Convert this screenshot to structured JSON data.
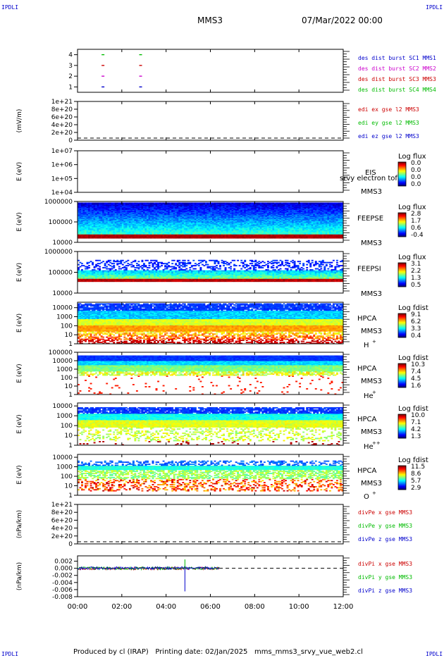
{
  "corners": {
    "tl": "IPDLI",
    "tr": "IPDLI",
    "bl": "IPDLI",
    "br": "IPDLI"
  },
  "header": {
    "spacecraft": "MMS3",
    "date": "07/Mar/2022 00:00"
  },
  "footer": {
    "produced": "Produced by cl (IRAP)",
    "printing": "Printing date: 02/Jan/2025",
    "file": "mms_mms3_srvy_vue_web2.cl"
  },
  "time_axis": {
    "ticks": [
      "00:00",
      "02:00",
      "04:00",
      "06:00",
      "08:00",
      "10:00",
      "12:00"
    ],
    "range_hours": [
      0,
      12
    ]
  },
  "colors": {
    "blue": "#0000cc",
    "magenta": "#cc00cc",
    "red": "#cc0000",
    "green": "#00bb00"
  },
  "chart_data": [
    {
      "type": "scatter",
      "panel": "burst",
      "ylabel": "",
      "yticks": [
        "1",
        "2",
        "3",
        "4"
      ],
      "ylim": [
        0.5,
        4.5
      ],
      "legend": [
        {
          "label": "des dist burst SC1 MMS1",
          "color": "#0000cc"
        },
        {
          "label": "des dist burst SC2 MMS2",
          "color": "#cc00cc"
        },
        {
          "label": "des dist burst SC3 MMS3",
          "color": "#cc0000"
        },
        {
          "label": "des dist burst SC4 MMS4",
          "color": "#00bb00"
        }
      ],
      "points": [
        {
          "x": 1.15,
          "y": 1,
          "color": "#0000cc"
        },
        {
          "x": 2.85,
          "y": 1,
          "color": "#0000cc"
        },
        {
          "x": 1.15,
          "y": 2,
          "color": "#cc00cc"
        },
        {
          "x": 2.85,
          "y": 2,
          "color": "#cc00cc"
        },
        {
          "x": 1.15,
          "y": 3,
          "color": "#cc0000"
        },
        {
          "x": 2.85,
          "y": 3,
          "color": "#cc0000"
        },
        {
          "x": 1.15,
          "y": 4,
          "color": "#00bb00"
        },
        {
          "x": 2.85,
          "y": 4,
          "color": "#00bb00"
        }
      ]
    },
    {
      "type": "line",
      "panel": "edi",
      "ylabel": "(mV/m)",
      "yticks": [
        "0",
        "2e+20",
        "4e+20",
        "6e+20",
        "8e+20",
        "1e+21"
      ],
      "ylim": [
        0,
        1e+21
      ],
      "zero_line": true,
      "legend": [
        {
          "label": "edi ex gse l2 MMS3",
          "color": "#cc0000"
        },
        {
          "label": "edi ey gse l2 MMS3",
          "color": "#00bb00"
        },
        {
          "label": "edi ez gse l2 MMS3",
          "color": "#0000cc"
        }
      ]
    },
    {
      "type": "heatmap",
      "panel": "eis",
      "ylabel": "E (eV)",
      "yscale": "log",
      "yticks": [
        "1e+04",
        "1e+05",
        "1e+06",
        "1e+07"
      ],
      "ylim": [
        10000.0,
        10000000.0
      ],
      "instrument": [
        "EIS",
        "MMS3"
      ],
      "overlay": "srvy electron tof",
      "colorbar": {
        "label": "Log flux",
        "ticks": [
          "0.0",
          "0.0",
          "0.0",
          "0.0"
        ]
      }
    },
    {
      "type": "heatmap",
      "panel": "feepse",
      "ylabel": "E (eV)",
      "yscale": "log",
      "yticks": [
        "10000",
        "100000",
        "1000000"
      ],
      "ylim": [
        10000,
        1000000
      ],
      "instrument": [
        "FEEPSE",
        "MMS3"
      ],
      "colorbar": {
        "label": "Log flux",
        "ticks": [
          "2.8",
          "1.7",
          "0.6",
          "-0.4"
        ]
      },
      "band": {
        "low_eV": 28000,
        "high_eV": 900000
      }
    },
    {
      "type": "heatmap",
      "panel": "feepsi",
      "ylabel": "E (eV)",
      "yscale": "log",
      "yticks": [
        "10000",
        "100000",
        "1000000"
      ],
      "ylim": [
        10000,
        1000000
      ],
      "instrument": [
        "FEEPSI",
        "MMS3"
      ],
      "colorbar": {
        "label": "Log flux",
        "ticks": [
          "3.1",
          "2.2",
          "1.3",
          "0.5"
        ]
      },
      "band": {
        "low_eV": 50000,
        "high_eV": 500000
      }
    },
    {
      "type": "heatmap",
      "panel": "hpca_h",
      "ylabel": "E (eV)",
      "yscale": "log",
      "yticks": [
        "1",
        "10",
        "100",
        "1000",
        "10000"
      ],
      "ylim": [
        1,
        40000
      ],
      "instrument": [
        "HPCA",
        "MMS3"
      ],
      "species": "H",
      "charge": "+",
      "colorbar": {
        "label": "Log fdist",
        "ticks": [
          "9.1",
          "6.2",
          "3.3",
          "0.4"
        ]
      }
    },
    {
      "type": "heatmap",
      "panel": "hpca_he",
      "ylabel": "E (eV)",
      "yscale": "log",
      "yticks": [
        "1",
        "10",
        "100",
        "1000",
        "10000",
        "100000"
      ],
      "ylim": [
        1,
        100000
      ],
      "instrument": [
        "HPCA",
        "MMS3"
      ],
      "species": "He",
      "charge": "+",
      "colorbar": {
        "label": "Log fdist",
        "ticks": [
          "10.3",
          "7.4",
          "4.5",
          "1.6"
        ]
      }
    },
    {
      "type": "heatmap",
      "panel": "hpca_he2",
      "ylabel": "E (eV)",
      "yscale": "log",
      "yticks": [
        "1",
        "10",
        "100",
        "1000",
        "10000"
      ],
      "ylim": [
        1,
        20000
      ],
      "instrument": [
        "HPCA",
        "MMS3"
      ],
      "species": "He",
      "charge": "++",
      "colorbar": {
        "label": "Log fdist",
        "ticks": [
          "10.0",
          "7.1",
          "4.2",
          "1.3"
        ]
      }
    },
    {
      "type": "heatmap",
      "panel": "hpca_o",
      "ylabel": "E (eV)",
      "yscale": "log",
      "yticks": [
        "1",
        "10",
        "100",
        "1000",
        "10000"
      ],
      "ylim": [
        1,
        20000
      ],
      "instrument": [
        "HPCA",
        "MMS3"
      ],
      "species": "O",
      "charge": "+",
      "colorbar": {
        "label": "Log fdist",
        "ticks": [
          "11.5",
          "8.6",
          "5.7",
          "2.9"
        ]
      }
    },
    {
      "type": "line",
      "panel": "divpe",
      "ylabel": "(nPa/km)",
      "yticks": [
        "0",
        "2e+20",
        "4e+20",
        "6e+20",
        "8e+20",
        "1e+21"
      ],
      "ylim": [
        0,
        1e+21
      ],
      "zero_line": true,
      "legend": [
        {
          "label": "divPe x gse MMS3",
          "color": "#cc0000"
        },
        {
          "label": "divPe y gse MMS3",
          "color": "#00bb00"
        },
        {
          "label": "divPe z gse MMS3",
          "color": "#0000cc"
        }
      ]
    },
    {
      "type": "line",
      "panel": "divpi",
      "ylabel": "(nPa/km)",
      "yticks": [
        "-0.008",
        "-0.006",
        "-0.004",
        "-0.002",
        "0.000",
        "0.002"
      ],
      "ylim": [
        -0.008,
        0.0035
      ],
      "zero_line": true,
      "data_range_hours": [
        0,
        6.4
      ],
      "spike": {
        "x": 4.85,
        "y_min": -0.0065,
        "y_max": 0.0025
      },
      "legend": [
        {
          "label": "divPi x gse MMS3",
          "color": "#cc0000"
        },
        {
          "label": "divPi y gse MMS3",
          "color": "#00bb00"
        },
        {
          "label": "divPi z gse MMS3",
          "color": "#0000cc"
        }
      ]
    }
  ]
}
